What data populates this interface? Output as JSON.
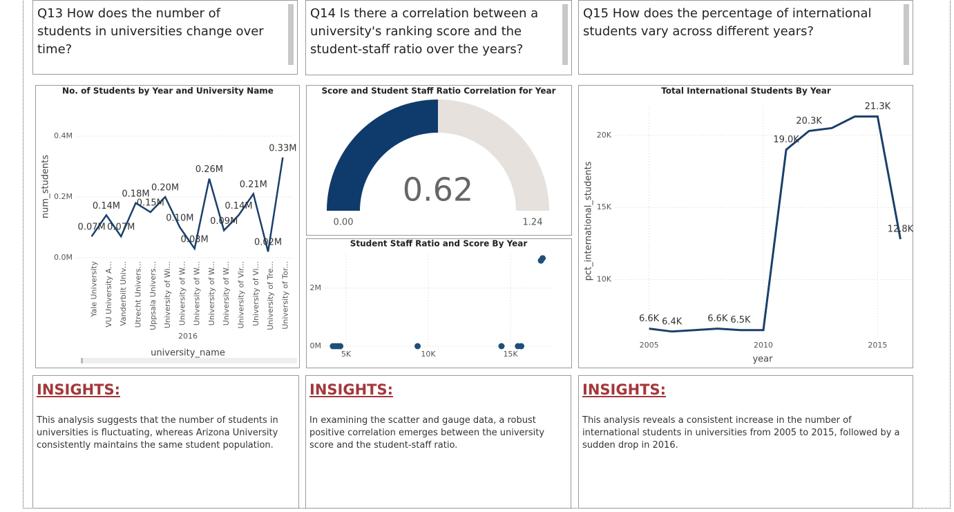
{
  "questions": [
    "Q13 How does the number of students in universities change over time?",
    "Q14 Is there a correlation between a university's ranking score and the student-staff ratio over the years?",
    "Q15 How does the percentage of international students vary across different years?"
  ],
  "chart_data": [
    {
      "type": "line",
      "title": "No. of Students by Year and University Name",
      "y_label": "num_students",
      "x_label": "university_name",
      "group_label": "2016",
      "categories": [
        "Yale University",
        "VU University A...",
        "Vanderbilt Univ...",
        "Utrecht Univers...",
        "Uppsala Univers...",
        "University of Wi...",
        "University of W...",
        "University of W...",
        "University of W...",
        "University of W...",
        "University of Vir...",
        "University of Vi...",
        "University of Tre...",
        "University of Tor..."
      ],
      "values": [
        0.07,
        0.14,
        0.07,
        0.18,
        0.15,
        0.2,
        0.1,
        0.03,
        0.26,
        0.09,
        0.14,
        0.21,
        0.02,
        0.33
      ],
      "value_labels": [
        "0.07M",
        "0.14M",
        "0.07M",
        "0.18M",
        "0.15M",
        "0.20M",
        "0.10M",
        "0.03M",
        "0.26M",
        "0.09M",
        "0.14M",
        "0.21M",
        "0.02M",
        "0.33M"
      ],
      "color": "#1a3f6b",
      "ylim": [
        0,
        0.4
      ],
      "yticks": [
        {
          "value": 0,
          "label": "0.0M"
        },
        {
          "value": 0.2,
          "label": "0.2M"
        },
        {
          "value": 0.4,
          "label": "0.4M"
        }
      ],
      "grid": true
    },
    {
      "type": "gauge",
      "title": "Score and Student Staff Ratio Correlation for Year",
      "value": 0.62,
      "range": [
        0,
        1.24
      ],
      "ticks": [
        {
          "value": 0,
          "label": "0.00"
        },
        {
          "value": 1.24,
          "label": "1.24"
        }
      ],
      "color": "#0f3b6c",
      "track_color": "#e6e1dc"
    },
    {
      "type": "scatter",
      "title": "Student Staff Ratio and Score By Year",
      "x": [
        4200,
        4350,
        4500,
        4650,
        9350,
        14450,
        15450,
        15650,
        16850,
        16950
      ],
      "values": [
        0,
        0,
        0,
        0,
        0,
        0,
        0,
        0,
        2950000,
        3030000
      ],
      "color": "#1f4e79",
      "xlim": [
        3700,
        17560
      ],
      "ylim": [
        0,
        3200000
      ],
      "xticks": [
        {
          "value": 5000,
          "label": "5K"
        },
        {
          "value": 10000,
          "label": "10K"
        },
        {
          "value": 15000,
          "label": "15K"
        }
      ],
      "yticks": [
        {
          "value": 0,
          "label": "0M"
        },
        {
          "value": 2000000,
          "label": "2M"
        }
      ],
      "grid": true
    },
    {
      "type": "line",
      "title": "Total International Students By Year",
      "y_label": "pct_international_students",
      "x_label": "year",
      "x": [
        2005,
        2006,
        2007,
        2008,
        2009,
        2010,
        2011,
        2012,
        2013,
        2014,
        2015,
        2016
      ],
      "values": [
        6600,
        6400,
        6500,
        6600,
        6500,
        6500,
        19000,
        20300,
        20500,
        21300,
        21300,
        12800
      ],
      "value_labels": [
        "6.6K",
        "6.4K",
        null,
        "6.6K",
        "6.5K",
        null,
        "19.0K",
        "20.3K",
        null,
        null,
        "21.3K",
        "12.8K"
      ],
      "color": "#1a3f6b",
      "xlim": [
        2003.5,
        2016.5
      ],
      "ylim": [
        5500,
        22000
      ],
      "xticks": [
        2005,
        2010,
        2015
      ],
      "yticks": [
        {
          "value": 10000,
          "label": "10K"
        },
        {
          "value": 15000,
          "label": "15K"
        },
        {
          "value": 20000,
          "label": "20K"
        }
      ],
      "grid": true
    }
  ],
  "insights": [
    {
      "title": "INSIGHTS:",
      "text": "This analysis suggests that the number of students in universities is fluctuating, whereas Arizona University consistently maintains the same student population."
    },
    {
      "title": "INSIGHTS:",
      "text": "In examining the scatter and gauge data, a robust positive correlation emerges between the university score and the student-staff ratio."
    },
    {
      "title": "INSIGHTS:",
      "text": "This analysis reveals a consistent increase in the number of international students in universities from 2005 to 2015, followed by a sudden drop in 2016."
    }
  ]
}
